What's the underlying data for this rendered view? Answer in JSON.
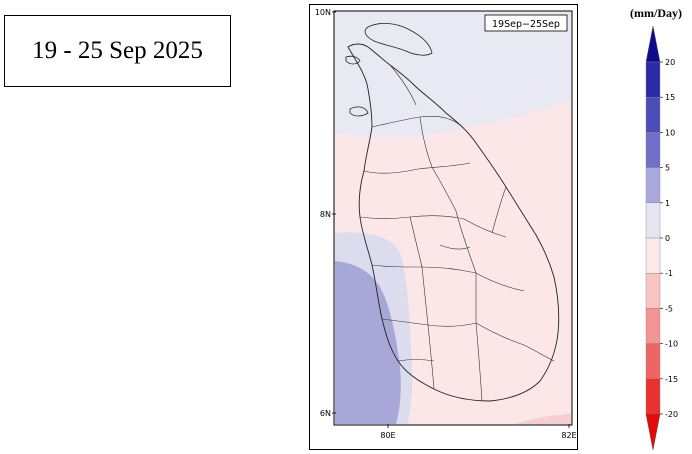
{
  "period_label": "19 - 25 Sep 2025",
  "map": {
    "inset_label": "19Sep−25Sep",
    "lat_labels": [
      {
        "text": "10N",
        "lat": 10
      },
      {
        "text": "8N",
        "lat": 8
      },
      {
        "text": "6N",
        "lat": 6
      }
    ],
    "lon_labels": [
      {
        "text": "80E",
        "lon": 80
      },
      {
        "text": "82E",
        "lon": 82
      }
    ],
    "region_colors": {
      "land_background": "#fbe6e8",
      "northern_anomaly": "#e9e9f4",
      "western_light": "#d9d9ee",
      "western_strong": "#a8a8d8",
      "southeast_corner": "#f7cdd1"
    }
  },
  "legend": {
    "unit": "(mm/Day)",
    "ticks": [
      "20",
      "15",
      "10",
      "5",
      "1",
      "0",
      "-1",
      "-5",
      "-10",
      "-15",
      "-20"
    ],
    "colors_top_to_bottom": [
      "#0d0d8c",
      "#2b2ba6",
      "#4c4cb9",
      "#7070c9",
      "#a8a8dc",
      "#e6e6f3",
      "#fde8e8",
      "#f9c4c4",
      "#f49494",
      "#ef6464",
      "#eb3030",
      "#e60a0a"
    ]
  }
}
